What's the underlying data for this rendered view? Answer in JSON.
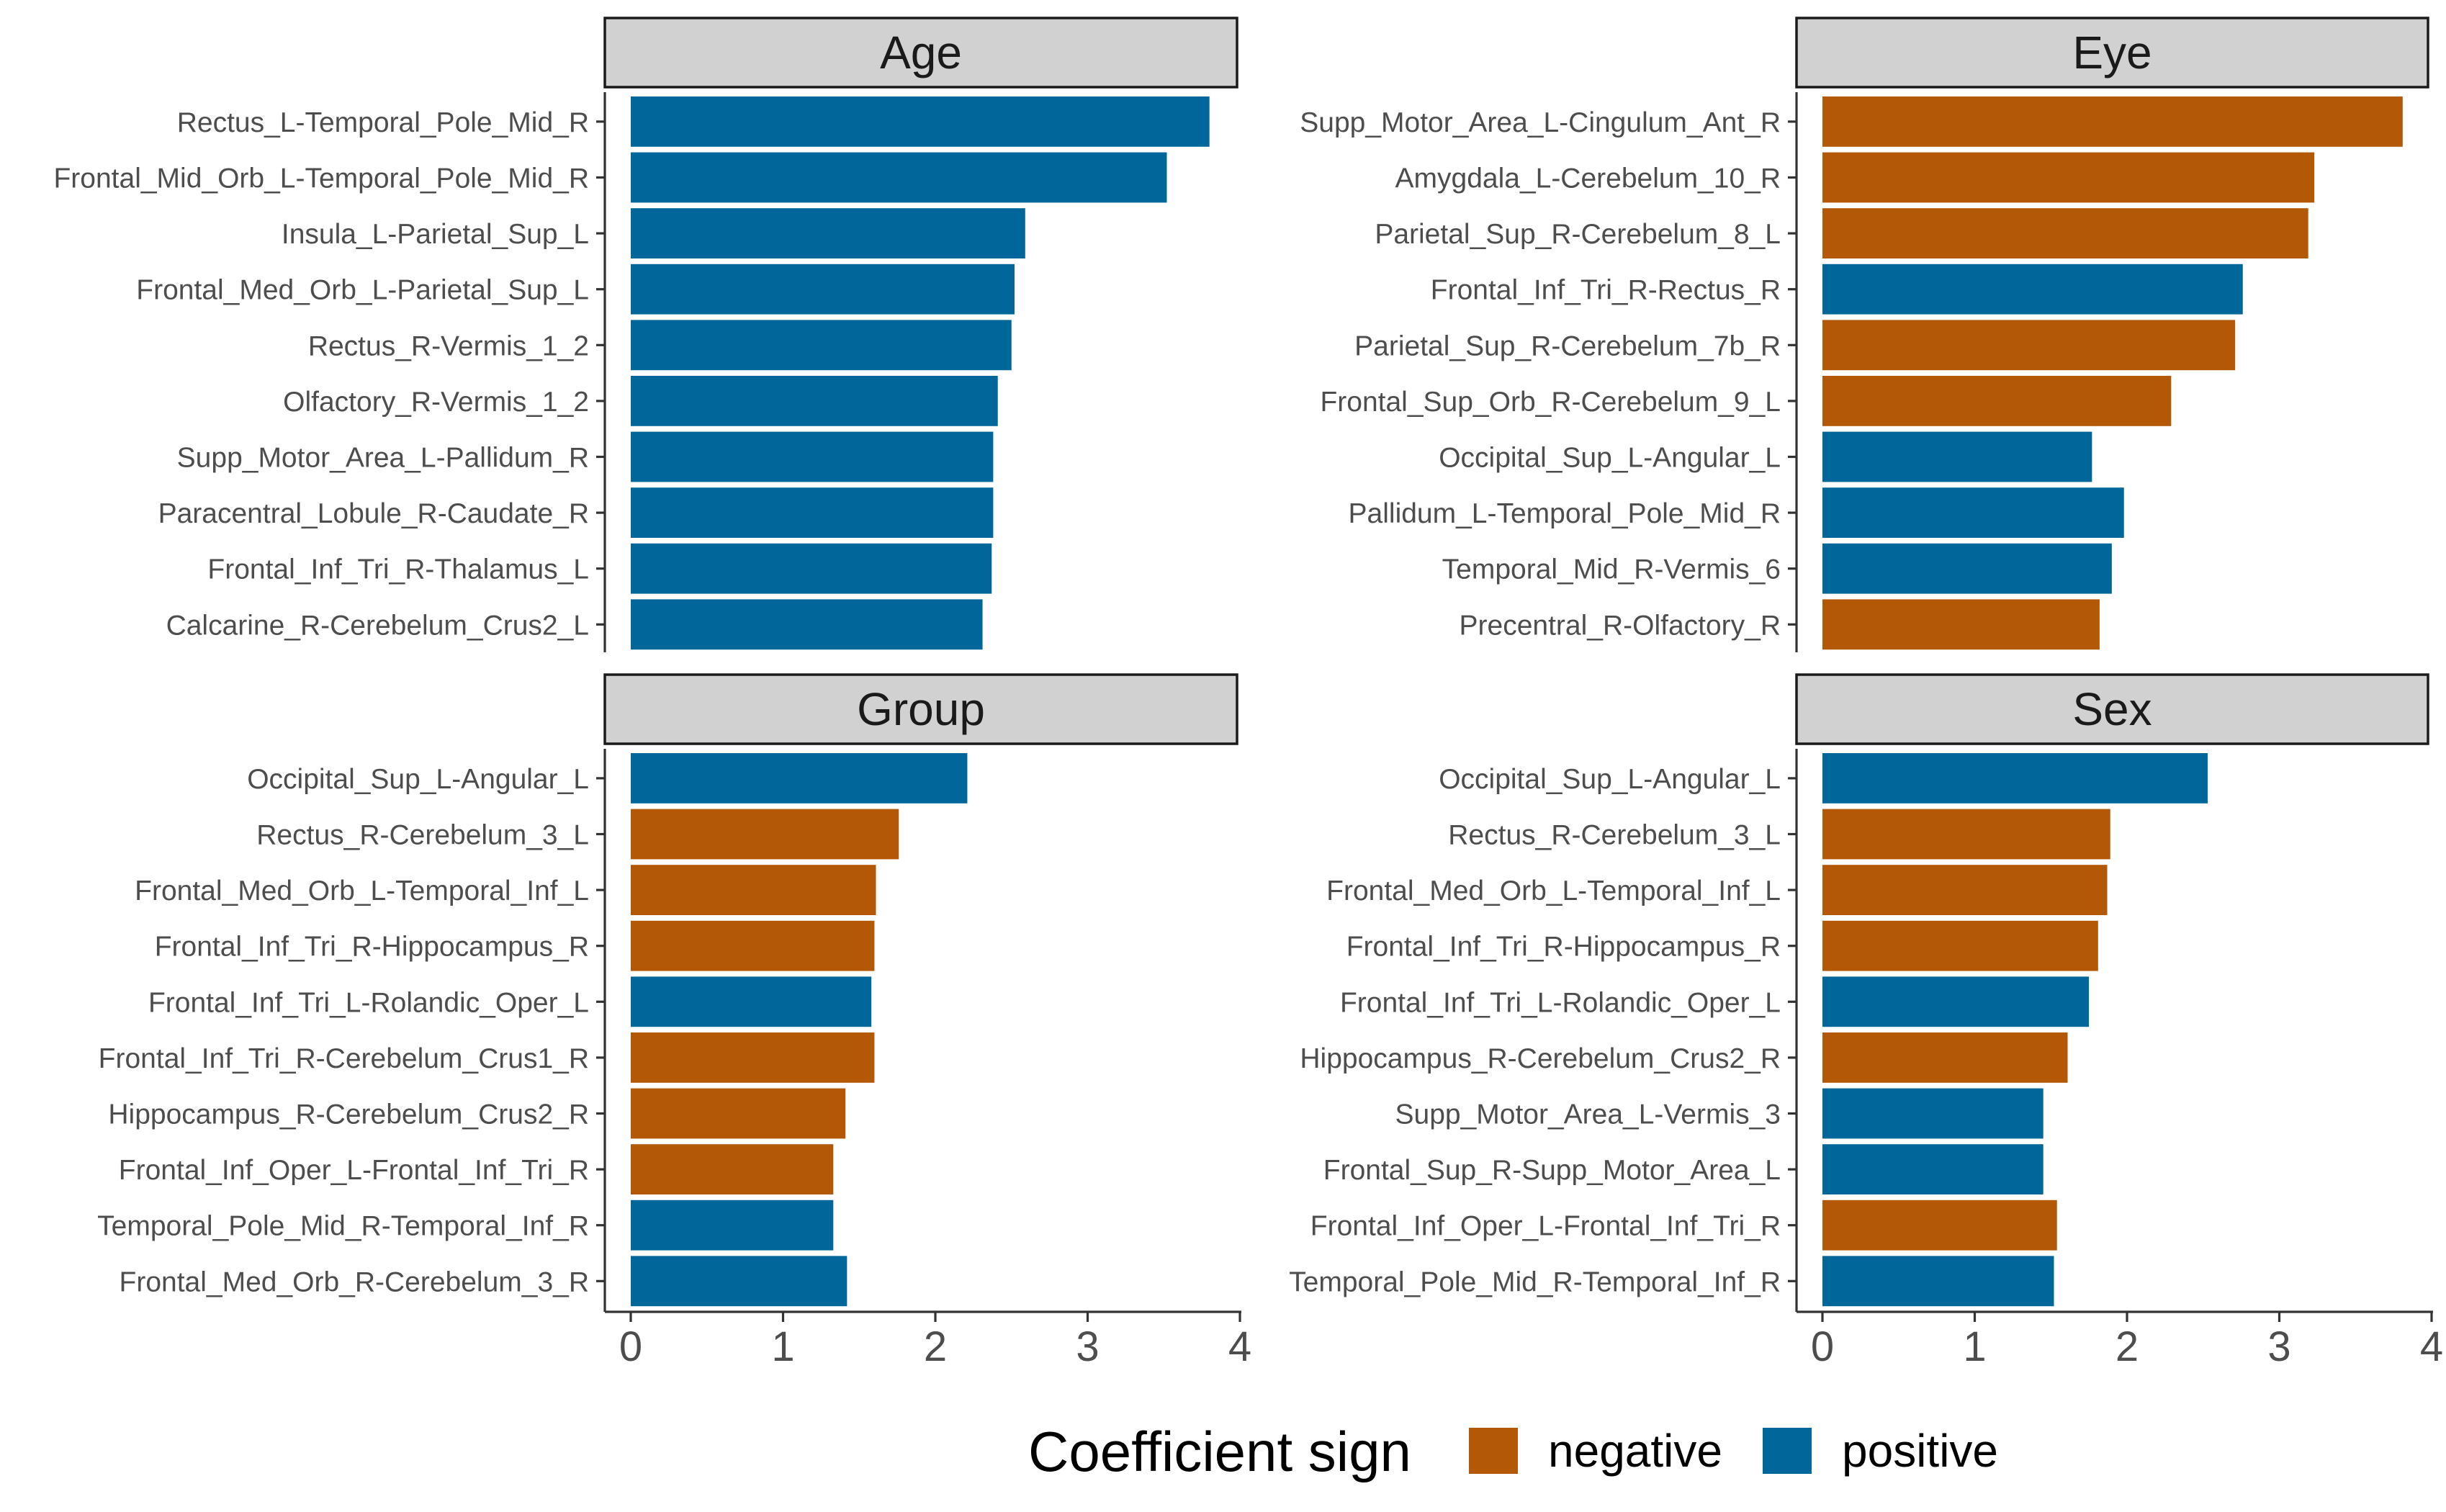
{
  "chart_data": {
    "type": "bar",
    "orientation": "horizontal",
    "faceted": true,
    "xlim": [
      0,
      4
    ],
    "x_ticks": [
      "0",
      "1",
      "2",
      "3",
      "4"
    ],
    "grid": false,
    "colors": {
      "negative": "#b35806",
      "positive": "#01669a"
    },
    "legend": {
      "title": "Coefficient sign",
      "position": "bottom",
      "entries": [
        "negative",
        "positive"
      ]
    },
    "panels": [
      {
        "title": "Age",
        "categories": [
          "Rectus_L-Temporal_Pole_Mid_R",
          "Frontal_Mid_Orb_L-Temporal_Pole_Mid_R",
          "Insula_L-Parietal_Sup_L",
          "Frontal_Med_Orb_L-Parietal_Sup_L",
          "Rectus_R-Vermis_1_2",
          "Olfactory_R-Vermis_1_2",
          "Supp_Motor_Area_L-Pallidum_R",
          "Paracentral_Lobule_R-Caudate_R",
          "Frontal_Inf_Tri_R-Thalamus_L",
          "Calcarine_R-Cerebelum_Crus2_L"
        ],
        "values": [
          3.8,
          3.52,
          2.59,
          2.52,
          2.5,
          2.41,
          2.38,
          2.38,
          2.37,
          2.31
        ],
        "signs": [
          "positive",
          "positive",
          "positive",
          "positive",
          "positive",
          "positive",
          "positive",
          "positive",
          "positive",
          "positive"
        ]
      },
      {
        "title": "Eye",
        "categories": [
          "Supp_Motor_Area_L-Cingulum_Ant_R",
          "Amygdala_L-Cerebelum_10_R",
          "Parietal_Sup_R-Cerebelum_8_L",
          "Frontal_Inf_Tri_R-Rectus_R",
          "Parietal_Sup_R-Cerebelum_7b_R",
          "Frontal_Sup_Orb_R-Cerebelum_9_L",
          "Occipital_Sup_L-Angular_L",
          "Pallidum_L-Temporal_Pole_Mid_R",
          "Temporal_Mid_R-Vermis_6",
          "Precentral_R-Olfactory_R"
        ],
        "values": [
          3.81,
          3.23,
          3.19,
          2.76,
          2.71,
          2.29,
          1.77,
          1.98,
          1.9,
          1.82
        ],
        "signs": [
          "negative",
          "negative",
          "negative",
          "positive",
          "negative",
          "negative",
          "positive",
          "positive",
          "positive",
          "negative"
        ]
      },
      {
        "title": "Group",
        "categories": [
          "Occipital_Sup_L-Angular_L",
          "Rectus_R-Cerebelum_3_L",
          "Frontal_Med_Orb_L-Temporal_Inf_L",
          "Frontal_Inf_Tri_R-Hippocampus_R",
          "Frontal_Inf_Tri_L-Rolandic_Oper_L",
          "Frontal_Inf_Tri_R-Cerebelum_Crus1_R",
          "Hippocampus_R-Cerebelum_Crus2_R",
          "Frontal_Inf_Oper_L-Frontal_Inf_Tri_R",
          "Temporal_Pole_Mid_R-Temporal_Inf_R",
          "Frontal_Med_Orb_R-Cerebelum_3_R"
        ],
        "values": [
          2.21,
          1.76,
          1.61,
          1.6,
          1.58,
          1.6,
          1.41,
          1.33,
          1.33,
          1.42
        ],
        "signs": [
          "positive",
          "negative",
          "negative",
          "negative",
          "positive",
          "negative",
          "negative",
          "negative",
          "positive",
          "positive"
        ]
      },
      {
        "title": "Sex",
        "categories": [
          "Occipital_Sup_L-Angular_L",
          "Rectus_R-Cerebelum_3_L",
          "Frontal_Med_Orb_L-Temporal_Inf_L",
          "Frontal_Inf_Tri_R-Hippocampus_R",
          "Frontal_Inf_Tri_L-Rolandic_Oper_L",
          "Hippocampus_R-Cerebelum_Crus2_R",
          "Supp_Motor_Area_L-Vermis_3",
          "Frontal_Sup_R-Supp_Motor_Area_L",
          "Frontal_Inf_Oper_L-Frontal_Inf_Tri_R",
          "Temporal_Pole_Mid_R-Temporal_Inf_R"
        ],
        "values": [
          2.53,
          1.89,
          1.87,
          1.81,
          1.75,
          1.61,
          1.45,
          1.45,
          1.54,
          1.52
        ],
        "signs": [
          "positive",
          "negative",
          "negative",
          "negative",
          "positive",
          "negative",
          "positive",
          "positive",
          "negative",
          "positive"
        ]
      }
    ]
  }
}
